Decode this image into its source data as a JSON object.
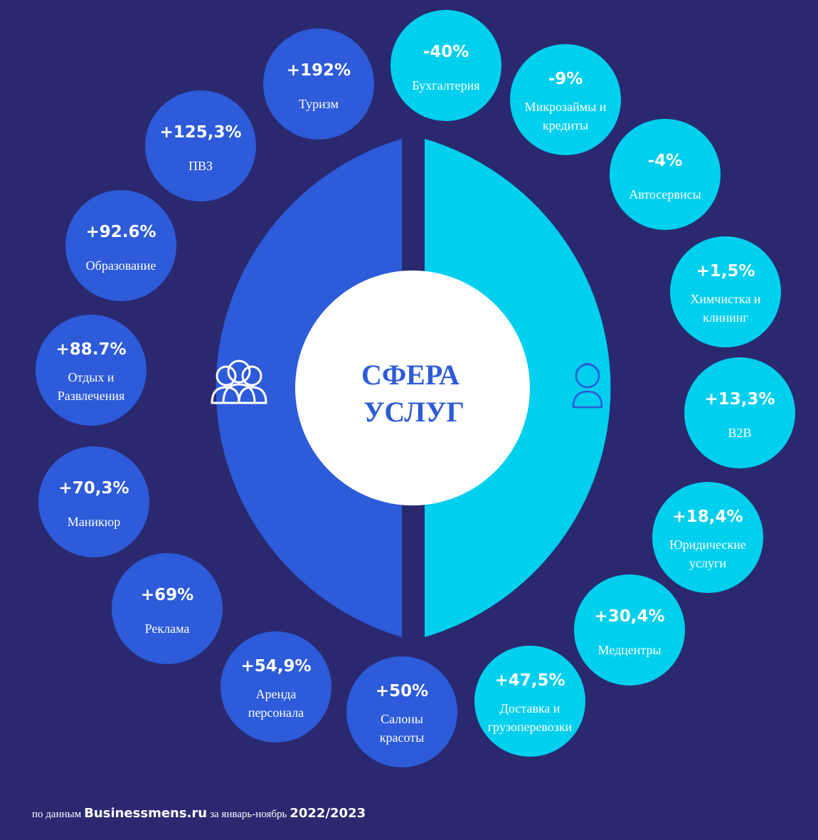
{
  "title": [
    "СФЕРА",
    "УСЛУГ"
  ],
  "groups": [
    {
      "color": "#2d5bd9",
      "items": [
        {
          "value": "+192%",
          "label": [
            "Туризм"
          ]
        },
        {
          "value": "+125,3%",
          "label": [
            "ПВЗ"
          ]
        },
        {
          "value": "+92.6%",
          "label": [
            "Образование"
          ]
        },
        {
          "value": "+88.7%",
          "label": [
            "Отдых и",
            "Развлечения"
          ]
        },
        {
          "value": "+70,3%",
          "label": [
            "Маникюр"
          ]
        },
        {
          "value": "+69%",
          "label": [
            "Реклама"
          ]
        },
        {
          "value": "+54,9%",
          "label": [
            "Аренда",
            "персонала"
          ]
        },
        {
          "value": "+50%",
          "label": [
            "Салоны",
            "красоты"
          ]
        }
      ]
    },
    {
      "color": "#00cfee",
      "items": [
        {
          "value": "-40%",
          "label": [
            "Бухгалтерия"
          ]
        },
        {
          "value": "-9%",
          "label": [
            "Микрозаймы и",
            "кредиты"
          ]
        },
        {
          "value": "-4%",
          "label": [
            "Автосервисы"
          ]
        },
        {
          "value": "+1,5%",
          "label": [
            "Химчистка и",
            "клининг"
          ]
        },
        {
          "value": "+13,3%",
          "label": [
            "B2B"
          ]
        },
        {
          "value": "+18,4%",
          "label": [
            "Юридические",
            "услуги"
          ]
        },
        {
          "value": "+30,4%",
          "label": [
            "Медцентры"
          ]
        },
        {
          "value": "+47,5%",
          "label": [
            "Доставка и",
            "грузоперевозки"
          ]
        }
      ]
    }
  ],
  "footer": [
    "по данным",
    "Businessmens.ru",
    "за январь-ноябрь",
    "2022/2023"
  ]
}
